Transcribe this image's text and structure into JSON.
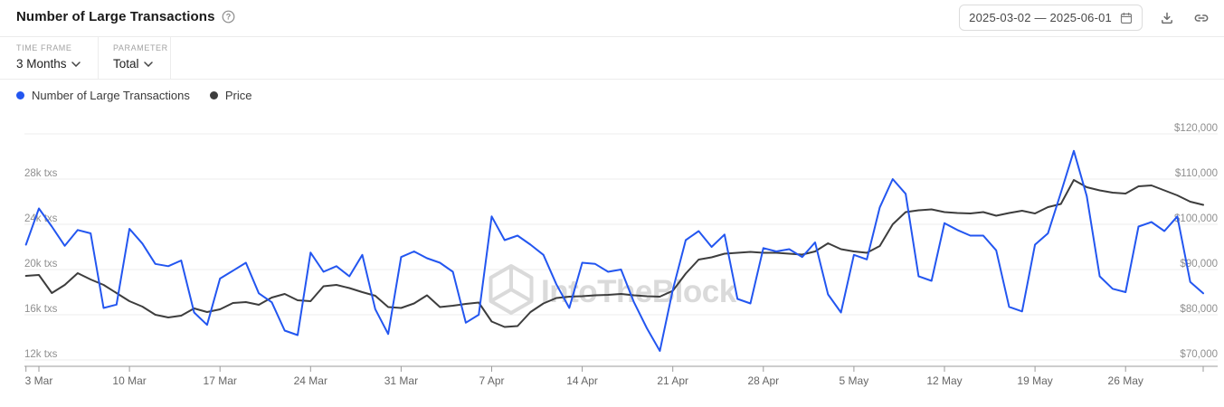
{
  "header": {
    "title": "Number of Large Transactions",
    "help_icon": "question-mark-circle",
    "date_range": "2025-03-02 — 2025-06-01",
    "actions": [
      "download",
      "copy-link"
    ]
  },
  "controls": {
    "time_frame": {
      "label": "TIME FRAME",
      "value": "3 Months"
    },
    "parameter": {
      "label": "PARAMETER",
      "value": "Total"
    }
  },
  "legend": [
    {
      "label": "Number of Large Transactions",
      "color": "#2356f0"
    },
    {
      "label": "Price",
      "color": "#3d3d3d"
    }
  ],
  "watermark": {
    "text": "IntoTheBlock",
    "color": "#dadada"
  },
  "chart_data": {
    "type": "line",
    "title": "Number of Large Transactions",
    "x_start_date": "2025-03-02",
    "x_end_date": "2025-06-01",
    "x_resolution": "daily",
    "x_tick_labels": [
      "3 Mar",
      "10 Mar",
      "17 Mar",
      "24 Mar",
      "31 Mar",
      "7 Apr",
      "14 Apr",
      "21 Apr",
      "28 Apr",
      "5 May",
      "12 May",
      "19 May",
      "26 May"
    ],
    "x_tick_day_index": [
      1,
      8,
      15,
      22,
      29,
      36,
      43,
      50,
      57,
      64,
      71,
      78,
      85
    ],
    "grid": true,
    "legend_position": "top-left",
    "y_left": {
      "unit": "k txs",
      "gridline_values": [
        32,
        28,
        24,
        20,
        16,
        12
      ],
      "labels": [
        "",
        "28k txs",
        "24k txs",
        "20k txs",
        "16k txs",
        "12k txs"
      ],
      "range": [
        12,
        32
      ]
    },
    "y_right": {
      "unit": "USD (thousands)",
      "gridline_values": [
        120,
        110,
        100,
        90,
        80,
        70
      ],
      "labels": [
        "$120,000",
        "$110,000",
        "$100,000",
        "$90,000",
        "$80,000",
        "$70,000"
      ],
      "range": [
        70,
        120
      ]
    },
    "series": [
      {
        "name": "Price",
        "axis": "right",
        "color": "#3d3d3d",
        "unit": "$k",
        "values": [
          88.6,
          88.8,
          84.8,
          86.6,
          89.2,
          87.8,
          86.6,
          84.8,
          83.0,
          81.8,
          80.0,
          79.4,
          79.8,
          81.4,
          80.6,
          81.2,
          82.6,
          82.8,
          82.2,
          83.8,
          84.6,
          83.2,
          83.0,
          86.3,
          86.6,
          85.9,
          85.0,
          84.2,
          81.7,
          81.5,
          82.5,
          84.3,
          81.7,
          82.0,
          82.4,
          82.7,
          78.5,
          77.3,
          77.5,
          80.6,
          82.5,
          83.7,
          84.0,
          84.1,
          84.3,
          84.4,
          84.6,
          84.3,
          84.1,
          84.0,
          85.3,
          89.1,
          92.2,
          92.7,
          93.5,
          93.7,
          93.9,
          93.7,
          93.7,
          93.5,
          93.3,
          94.0,
          95.8,
          94.5,
          94.0,
          93.7,
          95.2,
          100.0,
          102.7,
          103.1,
          103.3,
          102.7,
          102.5,
          102.4,
          102.7,
          101.9,
          102.5,
          103.0,
          102.4,
          103.8,
          104.5,
          109.8,
          108.2,
          107.5,
          107.0,
          106.8,
          108.4,
          108.6,
          107.5,
          106.4,
          105.0,
          104.3
        ]
      },
      {
        "name": "Number of Large Transactions",
        "axis": "left",
        "color": "#2356f0",
        "unit": "k txs",
        "values": [
          22.2,
          25.4,
          23.8,
          22.1,
          23.5,
          23.2,
          16.6,
          16.9,
          23.6,
          22.3,
          20.5,
          20.3,
          20.8,
          16.2,
          15.1,
          19.2,
          19.9,
          20.6,
          17.9,
          17.1,
          14.6,
          14.2,
          21.5,
          19.8,
          20.3,
          19.4,
          21.3,
          16.5,
          14.3,
          21.1,
          21.6,
          21.0,
          20.6,
          19.8,
          15.3,
          16.0,
          24.7,
          22.6,
          23.0,
          22.2,
          21.3,
          18.7,
          16.6,
          20.6,
          20.5,
          19.8,
          20.0,
          17.1,
          14.8,
          12.8,
          18.2,
          22.6,
          23.4,
          22.0,
          23.1,
          17.4,
          17.0,
          21.9,
          21.6,
          21.8,
          21.1,
          22.4,
          17.8,
          16.2,
          21.3,
          20.9,
          25.5,
          28.0,
          26.7,
          19.4,
          19.0,
          24.1,
          23.5,
          23.0,
          23.0,
          21.7,
          16.7,
          16.3,
          22.2,
          23.2,
          26.8,
          30.5,
          26.5,
          19.4,
          18.3,
          18.0,
          23.8,
          24.2,
          23.4,
          24.7,
          18.9,
          17.9
        ]
      }
    ]
  }
}
